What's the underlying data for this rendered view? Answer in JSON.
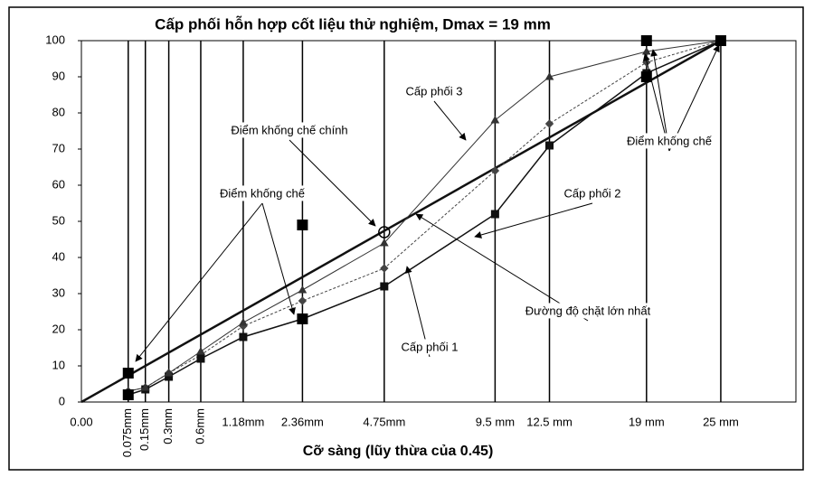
{
  "chart_data": {
    "type": "line",
    "title": "Cấp phối hỗn hợp cốt liệu thử nghiệm, Dmax = 19 mm",
    "x_label": "Cỡ sàng (lũy thừa của 0.45)",
    "x_power": 0.45,
    "xlim": [
      0,
      32
    ],
    "ylim": [
      0,
      100
    ],
    "xticks": [
      {
        "value": 0,
        "label": "0.00"
      },
      {
        "value": 0.075,
        "label": "0.075mm"
      },
      {
        "value": 0.15,
        "label": "0.15mm"
      },
      {
        "value": 0.3,
        "label": "0.3mm"
      },
      {
        "value": 0.6,
        "label": "0.6mm"
      },
      {
        "value": 1.18,
        "label": "1.18mm"
      },
      {
        "value": 2.36,
        "label": "2.36mm"
      },
      {
        "value": 4.75,
        "label": "4.75mm"
      },
      {
        "value": 9.5,
        "label": "9.5 mm"
      },
      {
        "value": 12.5,
        "label": "12.5 mm"
      },
      {
        "value": 19,
        "label": "19 mm"
      },
      {
        "value": 25,
        "label": "25 mm"
      }
    ],
    "yticks": [
      0,
      10,
      20,
      30,
      40,
      50,
      60,
      70,
      80,
      90,
      100
    ],
    "grid": "x",
    "series": [
      {
        "name": "Đường độ chặt lớn nhất",
        "color": "#111111",
        "width": 2.5,
        "marker": "none",
        "x": [
          0,
          25
        ],
        "values": [
          0,
          100
        ]
      },
      {
        "name": "Cấp phối 1",
        "color": "#444444",
        "width": 1,
        "dash": true,
        "marker": "diamond",
        "x": [
          0.075,
          0.15,
          0.3,
          0.6,
          1.18,
          2.36,
          4.75,
          9.5,
          12.5,
          19,
          25
        ],
        "values": [
          3,
          4,
          8,
          13,
          21,
          28,
          37,
          64,
          77,
          94,
          100
        ]
      },
      {
        "name": "Cấp phối 2",
        "color": "#111111",
        "width": 1.5,
        "marker": "square",
        "x": [
          0.075,
          0.15,
          0.3,
          0.6,
          1.18,
          2.36,
          4.75,
          9.5,
          12.5,
          19,
          25
        ],
        "values": [
          2,
          3.5,
          7,
          12,
          18,
          23,
          32,
          52,
          71,
          91,
          100
        ]
      },
      {
        "name": "Cấp phối 3",
        "color": "#333333",
        "width": 1,
        "marker": "triangle",
        "x": [
          0.075,
          0.15,
          0.3,
          0.6,
          1.18,
          2.36,
          4.75,
          9.5,
          12.5,
          19,
          25
        ],
        "values": [
          3,
          4,
          8,
          14,
          22,
          31,
          44,
          78,
          90,
          97,
          100
        ]
      },
      {
        "name": "Điểm khống chế",
        "color": "#000000",
        "marker": "bigsquare",
        "scatter": true,
        "x": [
          0.075,
          0.075,
          2.36,
          2.36,
          19,
          19,
          25
        ],
        "values": [
          2,
          8,
          23,
          49,
          90,
          100,
          100
        ]
      },
      {
        "name": "Điểm khống chế chính",
        "color": "#000000",
        "marker": "circle",
        "scatter": true,
        "x": [
          4.75
        ],
        "values": [
          47
        ]
      }
    ],
    "annotations": [
      "Điểm khống chế chính",
      "Điểm khống chế",
      "Cấp phối 3",
      "Cấp phối 2",
      "Cấp phối 1",
      "Đường độ chặt lớn nhất",
      "Điểm khống chế"
    ]
  }
}
